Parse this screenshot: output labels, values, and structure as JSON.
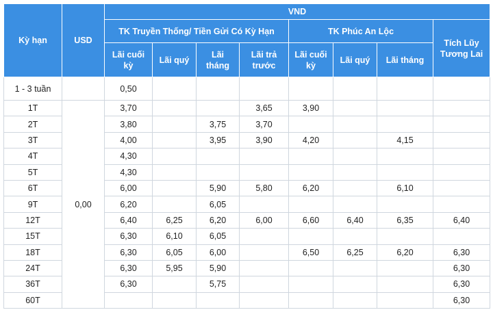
{
  "header": {
    "term": "Kỳ hạn",
    "usd": "USD",
    "vnd": "VND",
    "group1": "TK Truyền Thống/ Tiền Gửi Có Kỳ Hạn",
    "group2": "TK Phúc An Lộc",
    "group3": "Tích Lũy Tương Lai",
    "sub": [
      "Lãi cuối kỳ",
      "Lãi quý",
      "Lãi tháng",
      "Lãi trả trước",
      "Lãi cuối kỳ",
      "Lãi quý",
      "Lãi tháng"
    ]
  },
  "table": {
    "usd": "0,00",
    "rows": [
      {
        "term": "1 - 3 tuần",
        "cells": [
          "0,50",
          null,
          null,
          null,
          null,
          null,
          null,
          null
        ]
      },
      {
        "term": "1T",
        "cells": [
          "3,70",
          null,
          null,
          "3,65",
          "3,90",
          null,
          null,
          null
        ]
      },
      {
        "term": "2T",
        "cells": [
          "3,80",
          null,
          "3,75",
          "3,70",
          null,
          null,
          null,
          null
        ]
      },
      {
        "term": "3T",
        "cells": [
          "4,00",
          null,
          "3,95",
          "3,90",
          "4,20",
          null,
          "4,15",
          null
        ]
      },
      {
        "term": "4T",
        "cells": [
          "4,30",
          null,
          null,
          null,
          null,
          null,
          null,
          null
        ]
      },
      {
        "term": "5T",
        "cells": [
          "4,30",
          null,
          null,
          null,
          null,
          null,
          null,
          null
        ]
      },
      {
        "term": "6T",
        "cells": [
          "6,00",
          null,
          "5,90",
          "5,80",
          "6,20",
          null,
          "6,10",
          null
        ]
      },
      {
        "term": "9T",
        "cells": [
          "6,20",
          null,
          "6,05",
          null,
          null,
          null,
          null,
          null
        ]
      },
      {
        "term": "12T",
        "cells": [
          "6,40",
          "6,25",
          "6,20",
          "6,00",
          "6,60",
          "6,40",
          "6,35",
          "6,40"
        ]
      },
      {
        "term": "15T",
        "cells": [
          "6,30",
          "6,10",
          "6,05",
          null,
          null,
          null,
          null,
          null
        ]
      },
      {
        "term": "18T",
        "cells": [
          "6,30",
          "6,05",
          "6,00",
          null,
          "6,50",
          "6,25",
          "6,20",
          "6,30"
        ]
      },
      {
        "term": "24T",
        "cells": [
          "6,30",
          "5,95",
          "5,90",
          null,
          null,
          null,
          null,
          "6,30"
        ]
      },
      {
        "term": "36T",
        "cells": [
          "6,30",
          null,
          "5,75",
          null,
          null,
          null,
          null,
          "6,30"
        ]
      },
      {
        "term": "60T",
        "cells": [
          null,
          null,
          null,
          null,
          null,
          null,
          null,
          "6,30"
        ]
      }
    ]
  }
}
